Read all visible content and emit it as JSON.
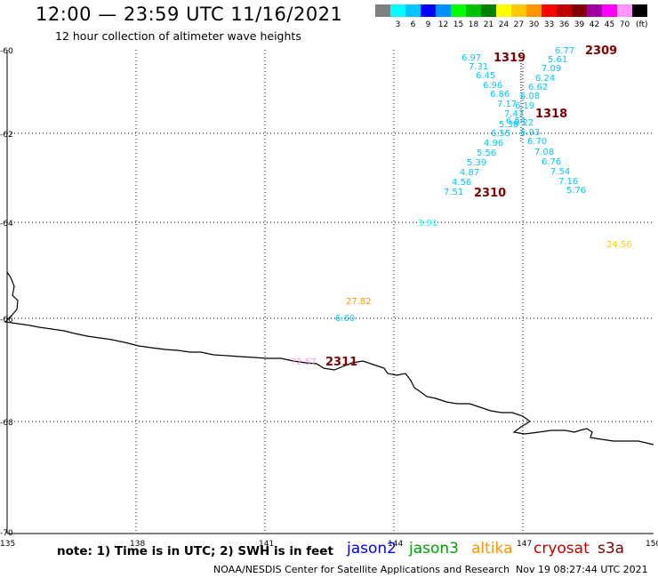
{
  "header": {
    "title": "12:00 — 23:59 UTC 11/16/2021",
    "subtitle": "12 hour collection of altimeter wave heights"
  },
  "legend": {
    "unit": "(ft)",
    "bins": [
      {
        "color": "#808080",
        "label": ""
      },
      {
        "color": "#00ffff",
        "label": "3"
      },
      {
        "color": "#00c8ff",
        "label": "6"
      },
      {
        "color": "#0000ff",
        "label": "9"
      },
      {
        "color": "#0090ff",
        "label": "12"
      },
      {
        "color": "#00ff00",
        "label": "15"
      },
      {
        "color": "#00c000",
        "label": "18"
      },
      {
        "color": "#008000",
        "label": "21"
      },
      {
        "color": "#ffff00",
        "label": "24"
      },
      {
        "color": "#ffc800",
        "label": "27"
      },
      {
        "color": "#ff9600",
        "label": "30"
      },
      {
        "color": "#ff0000",
        "label": "33"
      },
      {
        "color": "#c00000",
        "label": "36"
      },
      {
        "color": "#800000",
        "label": "39"
      },
      {
        "color": "#a000a0",
        "label": "42"
      },
      {
        "color": "#ff00ff",
        "label": "45"
      },
      {
        "color": "#ff96ff",
        "label": "70"
      },
      {
        "color": "#000000",
        "label": ""
      }
    ]
  },
  "axes": {
    "lat_labels": [
      "-60",
      "-62",
      "-64",
      "-66",
      "-68",
      "-70"
    ],
    "lon_labels": [
      "135",
      "138",
      "141",
      "144",
      "147",
      "150"
    ]
  },
  "wave_labels": [
    {
      "text": "6.77",
      "color": "#00c8ff"
    },
    {
      "text": "5.61",
      "color": "#00c8ff"
    },
    {
      "text": "7.09",
      "color": "#00c8ff"
    },
    {
      "text": "6.24",
      "color": "#00c8ff"
    },
    {
      "text": "6.62",
      "color": "#00c8ff"
    },
    {
      "text": "6.08",
      "color": "#00c8ff"
    },
    {
      "text": "6.19",
      "color": "#00c8ff"
    },
    {
      "text": "6.97",
      "color": "#00c8ff"
    },
    {
      "text": "7.31",
      "color": "#00c8ff"
    },
    {
      "text": "6.45",
      "color": "#00c8ff"
    },
    {
      "text": "6.96",
      "color": "#00c8ff"
    },
    {
      "text": "6.86",
      "color": "#00c8ff"
    },
    {
      "text": "7.17",
      "color": "#00c8ff"
    },
    {
      "text": "7.43",
      "color": "#00c8ff"
    },
    {
      "text": "6.54",
      "color": "#00c8ff"
    },
    {
      "text": "6.22",
      "color": "#00c8ff"
    },
    {
      "text": "5.38",
      "color": "#00c8ff"
    },
    {
      "text": "6.55",
      "color": "#00c8ff"
    },
    {
      "text": "6.93",
      "color": "#00c8ff"
    },
    {
      "text": "4.96",
      "color": "#00c8ff"
    },
    {
      "text": "6.70",
      "color": "#00c8ff"
    },
    {
      "text": "5.56",
      "color": "#00c8ff"
    },
    {
      "text": "7.08",
      "color": "#00c8ff"
    },
    {
      "text": "5.39",
      "color": "#00c8ff"
    },
    {
      "text": "6.76",
      "color": "#00c8ff"
    },
    {
      "text": "4.87",
      "color": "#00c8ff"
    },
    {
      "text": "7.54",
      "color": "#00c8ff"
    },
    {
      "text": "4.56",
      "color": "#00c8ff"
    },
    {
      "text": "7.16",
      "color": "#00c8ff"
    },
    {
      "text": "7.51",
      "color": "#00c8ff"
    },
    {
      "text": "5.76",
      "color": "#00c8ff"
    },
    {
      "text": "3.91",
      "color": "#00ffff"
    },
    {
      "text": "24.56",
      "color": "#ffc800"
    },
    {
      "text": "27.82",
      "color": "#ff9600"
    },
    {
      "text": "6.60",
      "color": "#00c8ff"
    },
    {
      "text": "72.57",
      "color": "#ff96ff"
    }
  ],
  "time_labels": [
    "1319",
    "2309",
    "1318",
    "2310",
    "2311"
  ],
  "footer": {
    "note": "note: 1) Time is in UTC; 2) SWH is in feet",
    "satellites": [
      {
        "name": "jason2",
        "color": "#0000ff"
      },
      {
        "name": "jason3",
        "color": "#00a000"
      },
      {
        "name": "altika",
        "color": "#ff9600"
      },
      {
        "name": "cryosat",
        "color": "#c00000"
      },
      {
        "name": "s3a",
        "color": "#800000"
      }
    ],
    "credit": "NOAA/NESDIS Center for Satellite Applications and Research",
    "timestamp": "Nov 19 08:27:44 UTC 2021"
  },
  "colors": {
    "time_label": "#800000",
    "coastline": "#000000",
    "grid": "#000000"
  }
}
